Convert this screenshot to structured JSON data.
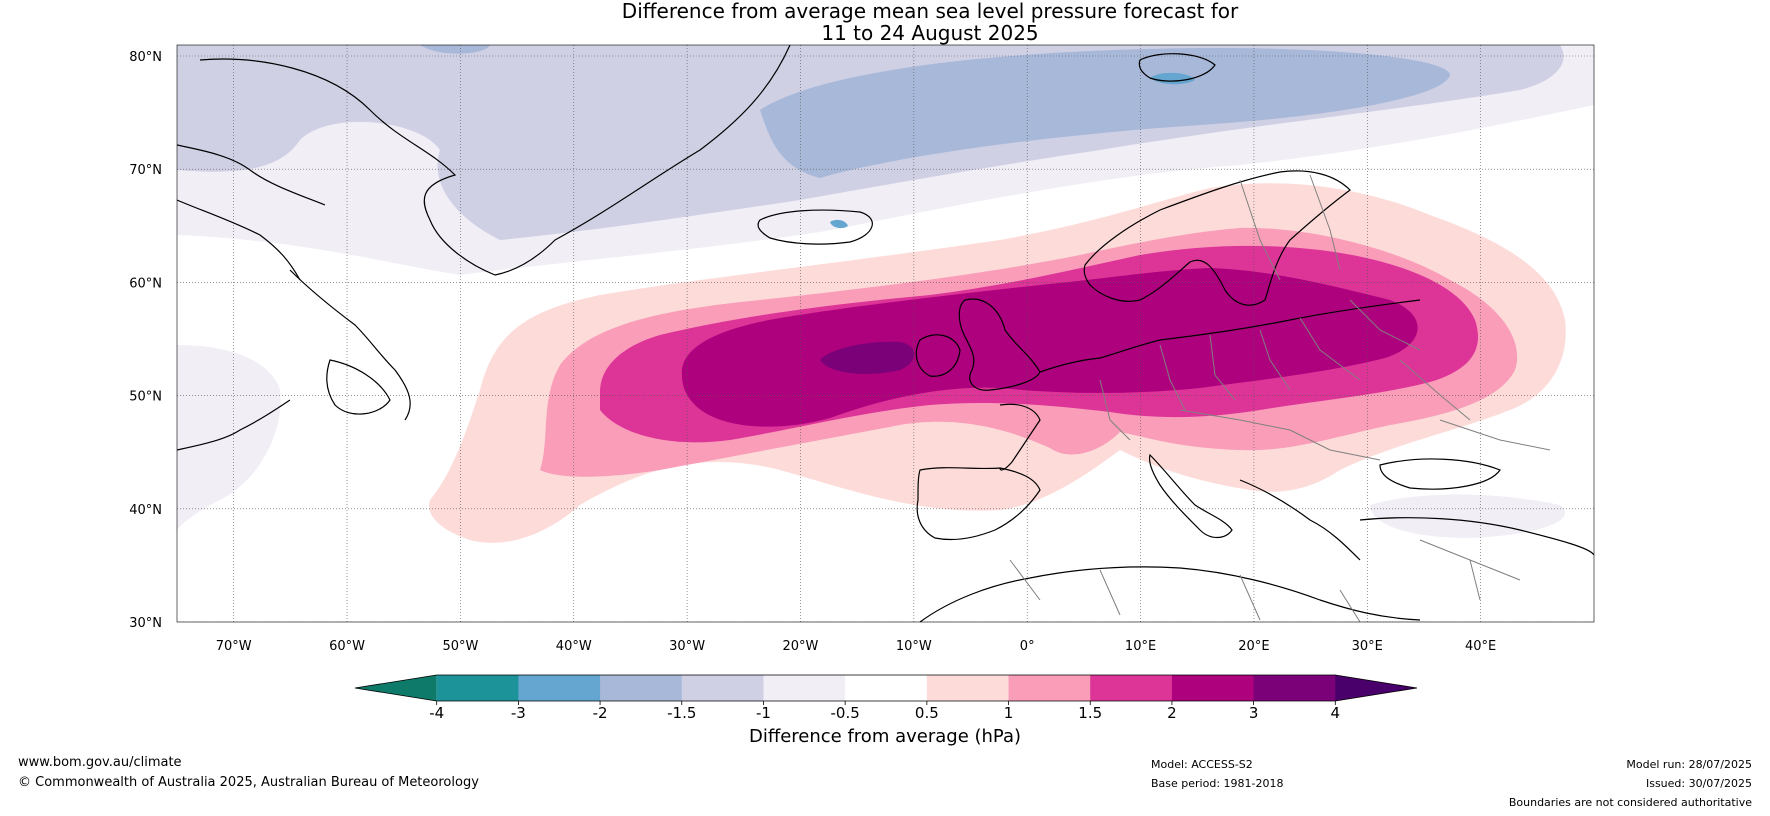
{
  "title": {
    "line1": "Difference from average mean sea level pressure forecast for",
    "line2": "11 to 24 August 2025"
  },
  "axes": {
    "lat_labels": [
      "80°N",
      "70°N",
      "60°N",
      "50°N",
      "40°N",
      "30°N"
    ],
    "lat_values": [
      80,
      70,
      60,
      50,
      40,
      30
    ],
    "lon_labels": [
      "70°W",
      "60°W",
      "50°W",
      "40°W",
      "30°W",
      "20°W",
      "10°W",
      "0°",
      "10°E",
      "20°E",
      "30°E",
      "40°E"
    ],
    "lon_values": [
      -70,
      -60,
      -50,
      -40,
      -30,
      -20,
      -10,
      0,
      10,
      20,
      30,
      40
    ],
    "lon_range": [
      -75,
      50
    ],
    "lat_range": [
      30,
      81
    ]
  },
  "colorbar": {
    "label": "Difference from average (hPa)",
    "tick_labels": [
      "-4",
      "-3",
      "-2",
      "-1.5",
      "-1",
      "-0.5",
      "0.5",
      "1",
      "1.5",
      "2",
      "3",
      "4"
    ],
    "colors": [
      "#0d7a6a",
      "#1c9299",
      "#64a6cf",
      "#a7b8d9",
      "#d0d0e5",
      "#f1eef6",
      "#ffffff",
      "#fddbd9",
      "#f99db9",
      "#dd3497",
      "#ae017e",
      "#7a0177",
      "#49006a"
    ]
  },
  "footer": {
    "website": "www.bom.gov.au/climate",
    "copyright": "© Commonwealth of Australia 2025, Australian Bureau of Meteorology",
    "model": "Model: ACCESS-S2",
    "base_period": "Base period: 1981-2018",
    "model_run": "Model run: 28/07/2025",
    "issued": "Issued: 30/07/2025",
    "boundaries_note": "Boundaries are not considered authoritative"
  },
  "chart_data": {
    "type": "heatmap",
    "variable": "mean sea level pressure anomaly",
    "unit": "hPa",
    "regions": [
      {
        "area": "centred over the United Kingdom, North Sea and southern Scandinavia to western Russia",
        "value_range": [
          2,
          3
        ]
      },
      {
        "area": "west of Ireland near 15°W 53°N",
        "value_range": [
          3,
          4
        ]
      },
      {
        "area": "broad band from the central Atlantic to western Russia",
        "value_range": [
          0.5,
          2
        ]
      },
      {
        "area": "Greenland and the Arctic north of Iceland",
        "value_range": [
          -2,
          -0.5
        ]
      },
      {
        "area": "southern Europe, Mediterranean and northern Africa",
        "value_range": [
          -0.5,
          0.5
        ]
      }
    ]
  }
}
